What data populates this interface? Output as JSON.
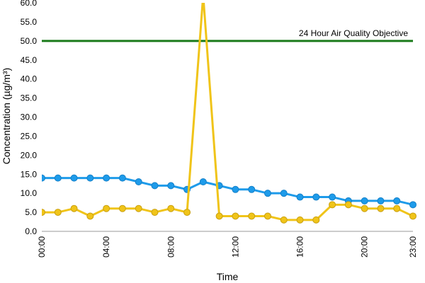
{
  "chart_data": {
    "type": "line",
    "xlabel": "Time",
    "ylabel": "Concentration (µg/m³)",
    "ylim": [
      0,
      60
    ],
    "yticks": [
      "0.0",
      "5.0",
      "10.0",
      "15.0",
      "20.0",
      "25.0",
      "30.0",
      "35.0",
      "40.0",
      "45.0",
      "50.0",
      "55.0",
      "60.0"
    ],
    "xticks": [
      "00:00",
      "04:00",
      "08:00",
      "12:00",
      "16:00",
      "20:00",
      "23:00"
    ],
    "xtick_hours": [
      0,
      4,
      8,
      12,
      16,
      20,
      23
    ],
    "x": [
      0,
      1,
      2,
      3,
      4,
      5,
      6,
      7,
      8,
      9,
      10,
      11,
      12,
      13,
      14,
      15,
      16,
      17,
      18,
      19,
      20,
      21,
      22,
      23
    ],
    "grid": false,
    "series": [
      {
        "color": "#1e9bea",
        "values": [
          14,
          14,
          14,
          14,
          14,
          14,
          13,
          12,
          12,
          11,
          13,
          12,
          11,
          11,
          10,
          10,
          9,
          9,
          9,
          8,
          8,
          8,
          8,
          7
        ]
      },
      {
        "color": "#f0c419",
        "values": [
          5,
          5,
          6,
          4,
          6,
          6,
          6,
          5,
          6,
          5,
          62,
          4,
          4,
          4,
          4,
          3,
          3,
          3,
          7,
          7,
          6,
          6,
          6,
          4
        ]
      }
    ],
    "reference_line": {
      "label": "24 Hour Air Quality Objective",
      "value": 50,
      "color": "#1a7a1a"
    }
  }
}
